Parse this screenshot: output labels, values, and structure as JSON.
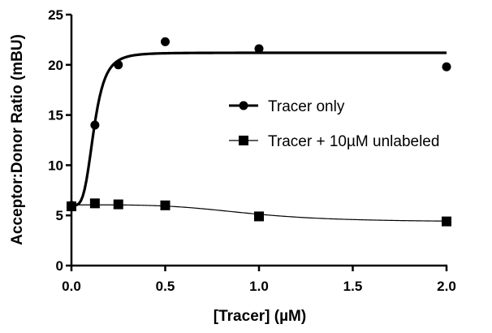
{
  "chart_data": {
    "type": "scatter",
    "xlabel": "[Tracer] (µM)",
    "ylabel": "Acceptor:Donor Ratio (mBU)",
    "xlim": [
      0,
      2.0
    ],
    "ylim": [
      0,
      25
    ],
    "x_ticks": [
      "0.0",
      "0.5",
      "1.0",
      "1.5",
      "2.0"
    ],
    "y_ticks": [
      "0",
      "5",
      "10",
      "15",
      "20",
      "25"
    ],
    "grid": false,
    "legend_position": "right",
    "series": [
      {
        "name": "Tracer only",
        "marker": "circle",
        "x": [
          0.0,
          0.125,
          0.25,
          0.5,
          1.0,
          2.0
        ],
        "y": [
          6.0,
          14.0,
          20.0,
          22.3,
          21.6,
          19.8
        ],
        "fit_style": "thick"
      },
      {
        "name": "Tracer + 10µM unlabeled",
        "marker": "square",
        "x": [
          0.0,
          0.125,
          0.25,
          0.5,
          1.0,
          2.0
        ],
        "y": [
          5.9,
          6.2,
          6.1,
          6.0,
          4.9,
          4.4
        ],
        "fit_style": "thin"
      }
    ]
  }
}
